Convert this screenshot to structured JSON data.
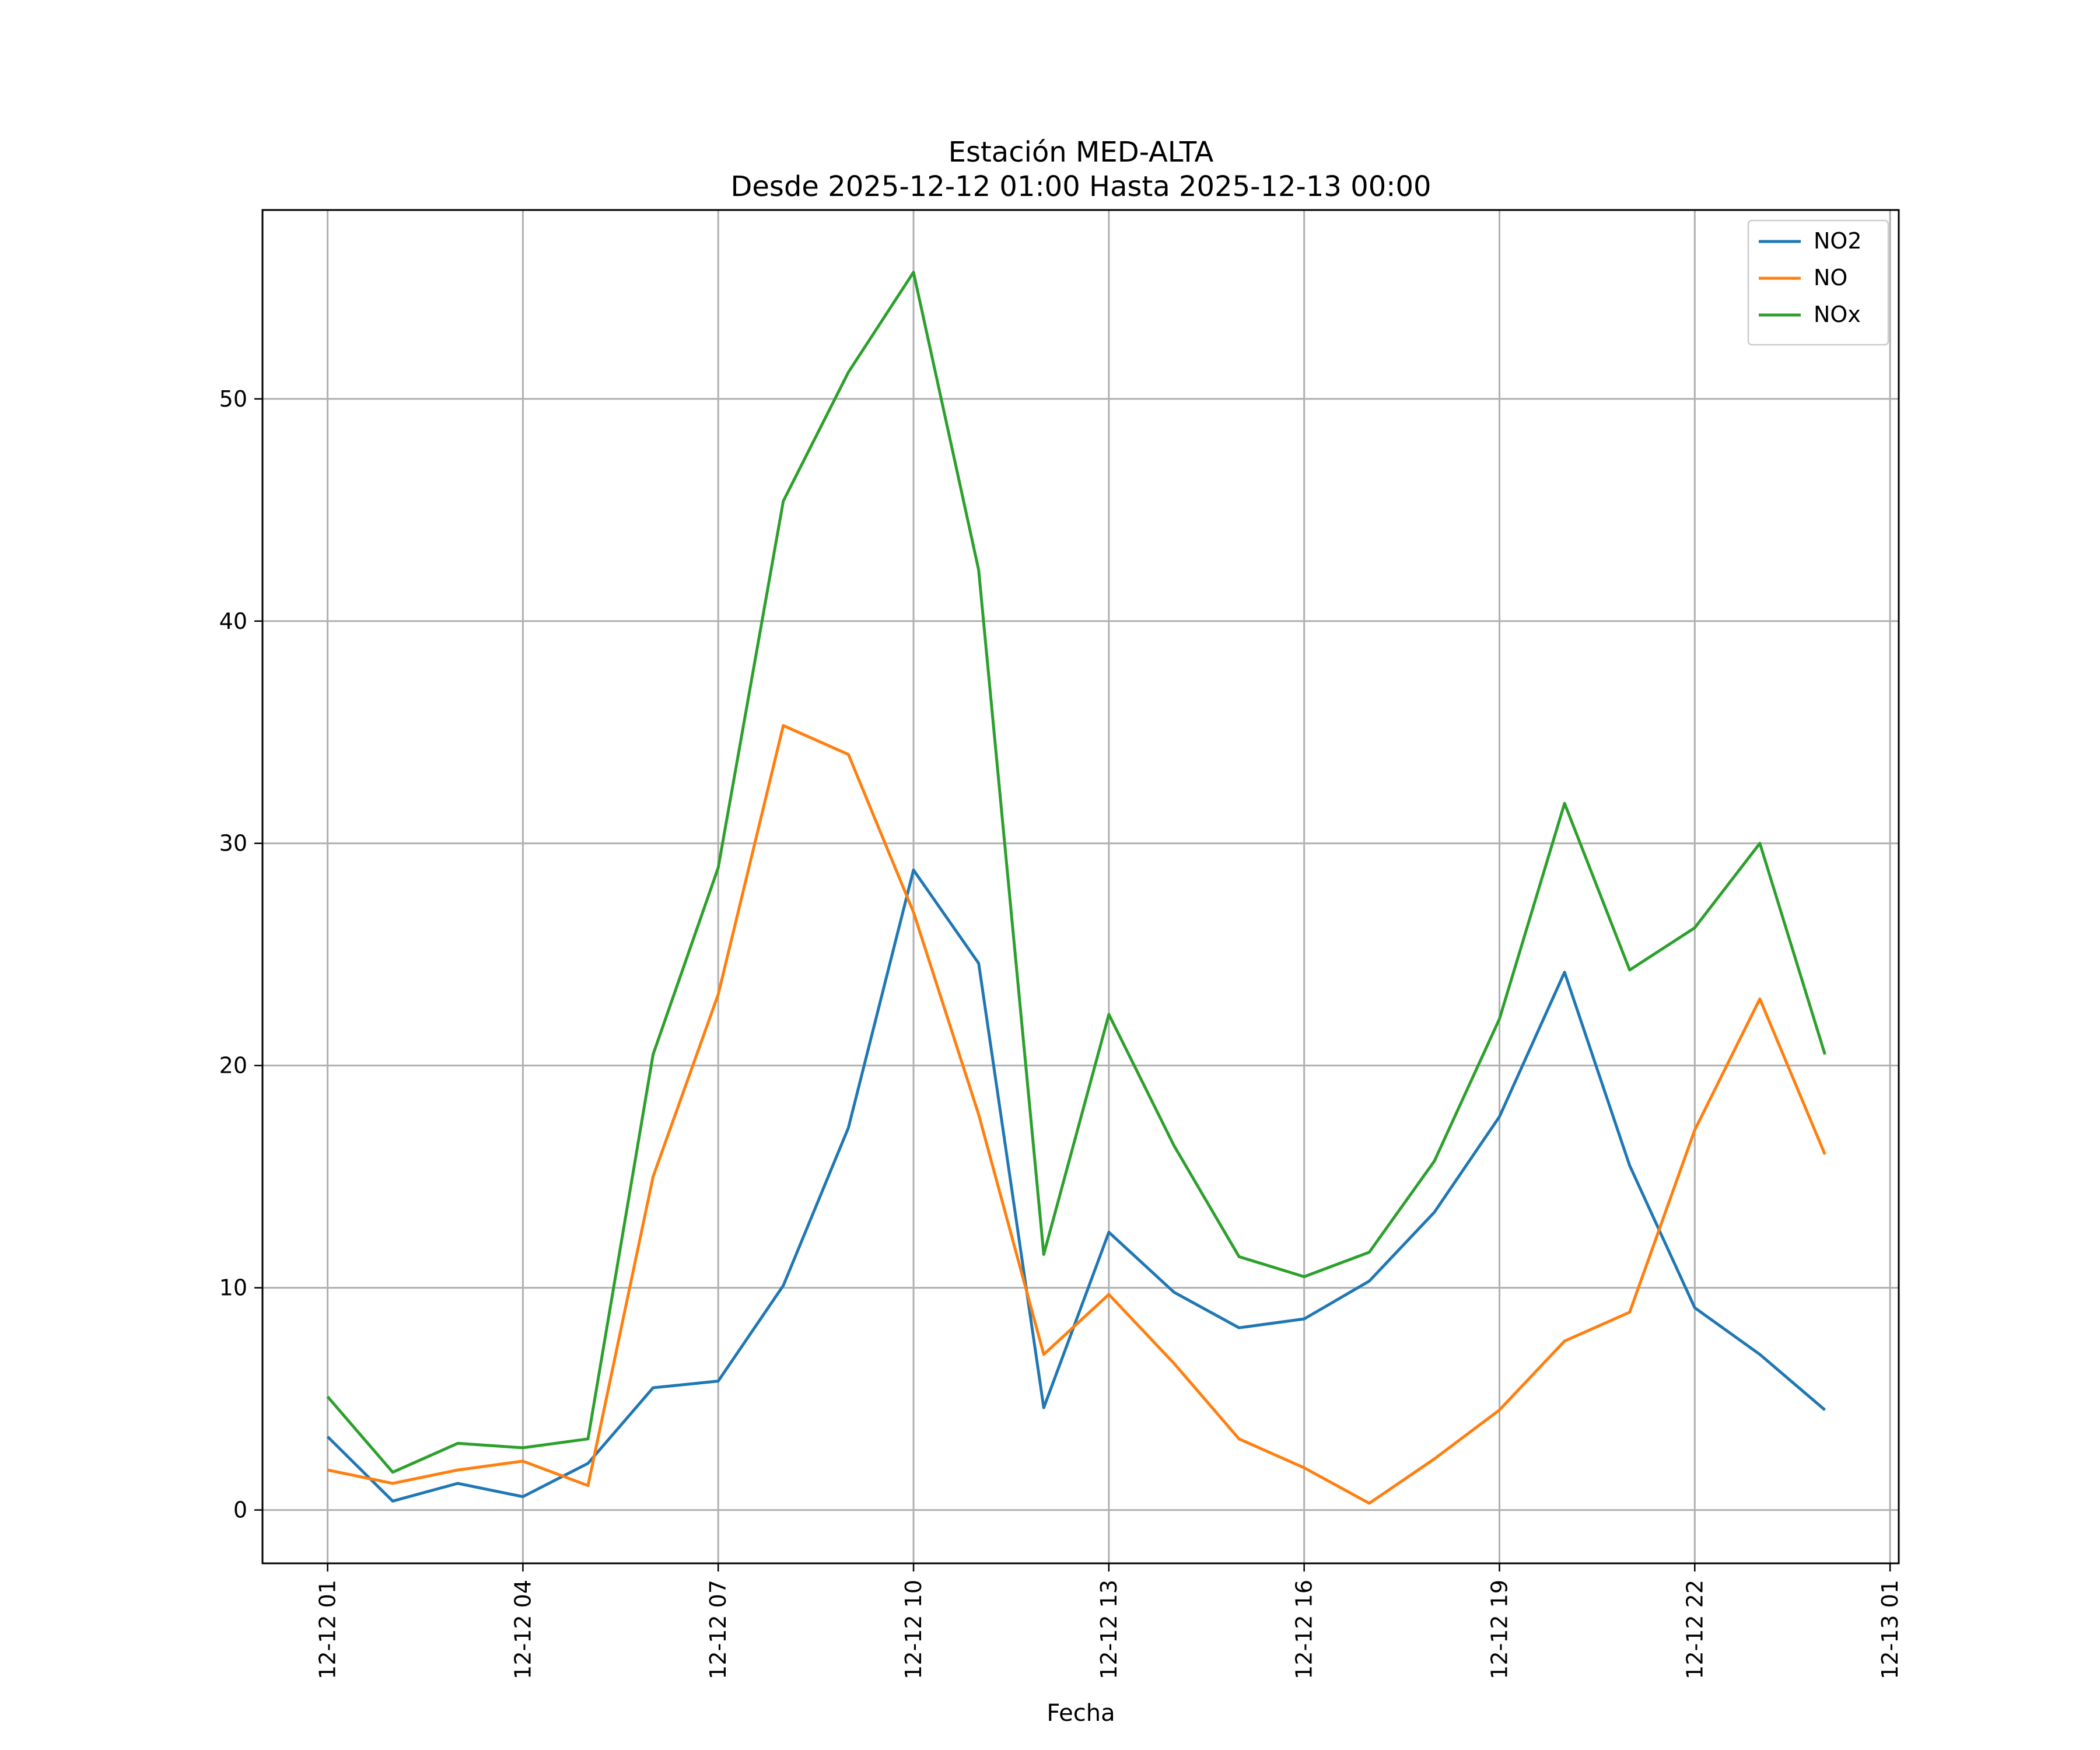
{
  "chart_data": {
    "type": "line",
    "title": [
      "Estación MED-ALTA",
      "Desde 2025-12-12 01:00 Hasta 2025-12-13 00:00"
    ],
    "xlabel": "Fecha",
    "ylabel": "",
    "x": [
      "2025-12-12 01:00",
      "2025-12-12 02:00",
      "2025-12-12 03:00",
      "2025-12-12 04:00",
      "2025-12-12 05:00",
      "2025-12-12 06:00",
      "2025-12-12 07:00",
      "2025-12-12 08:00",
      "2025-12-12 09:00",
      "2025-12-12 10:00",
      "2025-12-12 11:00",
      "2025-12-12 12:00",
      "2025-12-12 13:00",
      "2025-12-12 14:00",
      "2025-12-12 15:00",
      "2025-12-12 16:00",
      "2025-12-12 17:00",
      "2025-12-12 18:00",
      "2025-12-12 19:00",
      "2025-12-12 20:00",
      "2025-12-12 21:00",
      "2025-12-12 22:00",
      "2025-12-12 23:00",
      "2025-12-13 00:00"
    ],
    "xlim": [
      "2025-12-12 00:00",
      "2025-12-13 01:08"
    ],
    "ylim": [
      -2.4,
      58.5
    ],
    "x_ticks": [
      {
        "x": "2025-12-12 01:00",
        "label": "12-12 01"
      },
      {
        "x": "2025-12-12 04:00",
        "label": "12-12 04"
      },
      {
        "x": "2025-12-12 07:00",
        "label": "12-12 07"
      },
      {
        "x": "2025-12-12 10:00",
        "label": "12-12 10"
      },
      {
        "x": "2025-12-12 13:00",
        "label": "12-12 13"
      },
      {
        "x": "2025-12-12 16:00",
        "label": "12-12 16"
      },
      {
        "x": "2025-12-12 19:00",
        "label": "12-12 19"
      },
      {
        "x": "2025-12-12 22:00",
        "label": "12-12 22"
      },
      {
        "x": "2025-12-13 01:00",
        "label": "12-13 01"
      }
    ],
    "y_ticks": [
      0,
      10,
      20,
      30,
      40,
      50
    ],
    "grid": true,
    "legend_position": "top-right",
    "series": [
      {
        "name": "NO2",
        "color": "#1f77b4",
        "values": [
          3.3,
          0.4,
          1.2,
          0.6,
          2.1,
          5.5,
          5.8,
          10.1,
          17.2,
          28.8,
          24.6,
          4.6,
          12.5,
          9.8,
          8.2,
          8.6,
          10.3,
          13.4,
          17.7,
          24.2,
          15.5,
          9.1,
          7.0,
          4.5
        ]
      },
      {
        "name": "NO",
        "color": "#ff7f0e",
        "values": [
          1.8,
          1.2,
          1.8,
          2.2,
          1.1,
          15.0,
          23.2,
          35.3,
          34.0,
          26.9,
          17.8,
          7.0,
          9.7,
          6.6,
          3.2,
          1.9,
          0.3,
          2.3,
          4.5,
          7.6,
          8.9,
          17.1,
          23.0,
          16.0
        ]
      },
      {
        "name": "NOx",
        "color": "#2ca02c",
        "values": [
          5.1,
          1.7,
          3.0,
          2.8,
          3.2,
          20.5,
          28.9,
          45.4,
          51.2,
          55.7,
          42.3,
          11.5,
          22.3,
          16.4,
          11.4,
          10.5,
          11.6,
          15.7,
          22.1,
          31.8,
          24.3,
          26.2,
          30.0,
          20.5
        ]
      }
    ]
  }
}
